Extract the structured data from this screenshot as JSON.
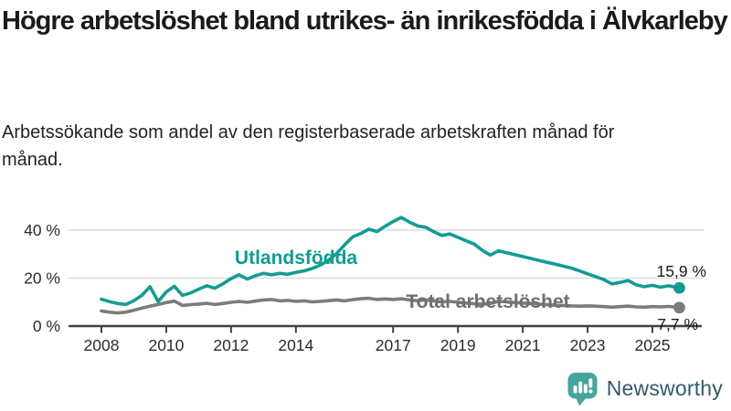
{
  "header": {
    "title": "Högre arbetslöshet bland utrikes- än inrikesfödda i Älvkarleby",
    "subtitle": "Arbetssökande som andel av den registerbaserade arbetskraften månad för månad."
  },
  "chart_data": {
    "type": "line",
    "title": "Högre arbetslöshet bland utrikes- än inrikesfödda i Älvkarleby",
    "subtitle": "Arbetssökande som andel av den registerbaserade arbetskraften månad för månad.",
    "unit": "%",
    "grid": "horizontal",
    "legend_position": "inline-labels",
    "xlim": [
      2007.8,
      2026.2
    ],
    "ylim": [
      0,
      48
    ],
    "x_ticks": [
      2008,
      2010,
      2012,
      2014,
      2017,
      2019,
      2021,
      2023,
      2025
    ],
    "x_tick_labels": [
      "2008",
      "2010",
      "2012",
      "2014",
      "2017",
      "2019",
      "2021",
      "2023",
      "2025"
    ],
    "y_ticks": [
      {
        "value": 0,
        "label": "0 %"
      },
      {
        "value": 20,
        "label": "20 %"
      },
      {
        "value": 40,
        "label": "40 %"
      }
    ],
    "series": [
      {
        "name": "Utlandsfödda",
        "color": "#149c92",
        "end_label": "15,9 %",
        "end_value": 15.9,
        "points": [
          [
            2008.0,
            11.2
          ],
          [
            2008.25,
            10.2
          ],
          [
            2008.5,
            9.4
          ],
          [
            2008.75,
            9.0
          ],
          [
            2009.0,
            10.6
          ],
          [
            2009.25,
            12.8
          ],
          [
            2009.5,
            16.4
          ],
          [
            2009.75,
            10.2
          ],
          [
            2010.0,
            14.2
          ],
          [
            2010.25,
            16.6
          ],
          [
            2010.5,
            12.8
          ],
          [
            2010.75,
            13.8
          ],
          [
            2011.0,
            15.4
          ],
          [
            2011.25,
            16.8
          ],
          [
            2011.5,
            15.8
          ],
          [
            2011.75,
            17.6
          ],
          [
            2012.0,
            19.8
          ],
          [
            2012.25,
            21.4
          ],
          [
            2012.5,
            19.6
          ],
          [
            2012.75,
            21.0
          ],
          [
            2013.0,
            22.0
          ],
          [
            2013.25,
            21.4
          ],
          [
            2013.5,
            22.0
          ],
          [
            2013.75,
            21.6
          ],
          [
            2014.0,
            22.4
          ],
          [
            2014.25,
            23.0
          ],
          [
            2014.5,
            24.0
          ],
          [
            2014.75,
            25.4
          ],
          [
            2015.0,
            27.4
          ],
          [
            2015.25,
            30.2
          ],
          [
            2015.5,
            33.8
          ],
          [
            2015.75,
            37.2
          ],
          [
            2016.0,
            38.6
          ],
          [
            2016.25,
            40.4
          ],
          [
            2016.5,
            39.4
          ],
          [
            2016.75,
            41.6
          ],
          [
            2017.0,
            43.6
          ],
          [
            2017.25,
            45.3
          ],
          [
            2017.5,
            43.4
          ],
          [
            2017.75,
            41.8
          ],
          [
            2018.0,
            41.2
          ],
          [
            2018.25,
            39.4
          ],
          [
            2018.5,
            37.8
          ],
          [
            2018.75,
            38.4
          ],
          [
            2019.0,
            37.0
          ],
          [
            2019.25,
            35.6
          ],
          [
            2019.5,
            34.2
          ],
          [
            2019.75,
            31.6
          ],
          [
            2020.0,
            29.6
          ],
          [
            2020.25,
            31.4
          ],
          [
            2020.5,
            30.6
          ],
          [
            2020.75,
            29.8
          ],
          [
            2021.0,
            29.0
          ],
          [
            2021.25,
            28.2
          ],
          [
            2021.5,
            27.4
          ],
          [
            2021.75,
            26.6
          ],
          [
            2022.0,
            25.8
          ],
          [
            2022.25,
            25.0
          ],
          [
            2022.5,
            24.2
          ],
          [
            2022.75,
            23.0
          ],
          [
            2023.0,
            21.8
          ],
          [
            2023.25,
            20.6
          ],
          [
            2023.5,
            19.4
          ],
          [
            2023.75,
            17.6
          ],
          [
            2024.0,
            18.2
          ],
          [
            2024.25,
            19.0
          ],
          [
            2024.5,
            17.2
          ],
          [
            2024.75,
            16.4
          ],
          [
            2025.0,
            17.0
          ],
          [
            2025.25,
            16.2
          ],
          [
            2025.5,
            16.8
          ],
          [
            2025.83,
            15.9
          ]
        ]
      },
      {
        "name": "Total arbetslöshet",
        "color": "#7c7c7c",
        "end_label": "7,7 %",
        "end_value": 7.7,
        "points": [
          [
            2008.0,
            6.3
          ],
          [
            2008.25,
            5.8
          ],
          [
            2008.5,
            5.5
          ],
          [
            2008.75,
            5.8
          ],
          [
            2009.0,
            6.6
          ],
          [
            2009.25,
            7.5
          ],
          [
            2009.5,
            8.3
          ],
          [
            2009.75,
            9.0
          ],
          [
            2010.0,
            9.8
          ],
          [
            2010.25,
            10.4
          ],
          [
            2010.5,
            8.6
          ],
          [
            2010.75,
            8.9
          ],
          [
            2011.0,
            9.2
          ],
          [
            2011.25,
            9.5
          ],
          [
            2011.5,
            9.0
          ],
          [
            2011.75,
            9.4
          ],
          [
            2012.0,
            9.9
          ],
          [
            2012.25,
            10.3
          ],
          [
            2012.5,
            9.9
          ],
          [
            2012.75,
            10.4
          ],
          [
            2013.0,
            10.9
          ],
          [
            2013.25,
            11.1
          ],
          [
            2013.5,
            10.5
          ],
          [
            2013.75,
            10.7
          ],
          [
            2014.0,
            10.3
          ],
          [
            2014.25,
            10.5
          ],
          [
            2014.5,
            10.1
          ],
          [
            2014.75,
            10.3
          ],
          [
            2015.0,
            10.6
          ],
          [
            2015.25,
            10.9
          ],
          [
            2015.5,
            10.5
          ],
          [
            2015.75,
            11.0
          ],
          [
            2016.0,
            11.4
          ],
          [
            2016.25,
            11.6
          ],
          [
            2016.5,
            11.1
          ],
          [
            2016.75,
            11.3
          ],
          [
            2017.0,
            11.1
          ],
          [
            2017.25,
            11.4
          ],
          [
            2017.5,
            10.9
          ],
          [
            2017.75,
            10.6
          ],
          [
            2018.0,
            10.9
          ],
          [
            2018.25,
            10.5
          ],
          [
            2018.5,
            10.1
          ],
          [
            2018.75,
            10.3
          ],
          [
            2019.0,
            9.9
          ],
          [
            2019.25,
            9.6
          ],
          [
            2019.5,
            9.3
          ],
          [
            2019.75,
            9.1
          ],
          [
            2020.0,
            9.4
          ],
          [
            2020.25,
            10.3
          ],
          [
            2020.5,
            10.1
          ],
          [
            2020.75,
            9.8
          ],
          [
            2021.0,
            9.6
          ],
          [
            2021.25,
            9.4
          ],
          [
            2021.5,
            9.1
          ],
          [
            2021.75,
            8.9
          ],
          [
            2022.0,
            8.7
          ],
          [
            2022.25,
            8.6
          ],
          [
            2022.5,
            8.4
          ],
          [
            2022.75,
            8.3
          ],
          [
            2023.0,
            8.4
          ],
          [
            2023.25,
            8.3
          ],
          [
            2023.5,
            8.1
          ],
          [
            2023.75,
            7.9
          ],
          [
            2024.0,
            8.1
          ],
          [
            2024.25,
            8.3
          ],
          [
            2024.5,
            8.0
          ],
          [
            2024.75,
            7.9
          ],
          [
            2025.0,
            8.1
          ],
          [
            2025.25,
            8.0
          ],
          [
            2025.5,
            8.2
          ],
          [
            2025.83,
            7.7
          ]
        ]
      }
    ]
  },
  "colors": {
    "accent_teal": "#149c92",
    "line_gray": "#7c7c7c",
    "gridline": "#dcdcdc",
    "axis": "#414141",
    "logo_teal": "#47a59e",
    "wordmark": "#33596b"
  },
  "footer": {
    "brand": "Newsworthy"
  }
}
